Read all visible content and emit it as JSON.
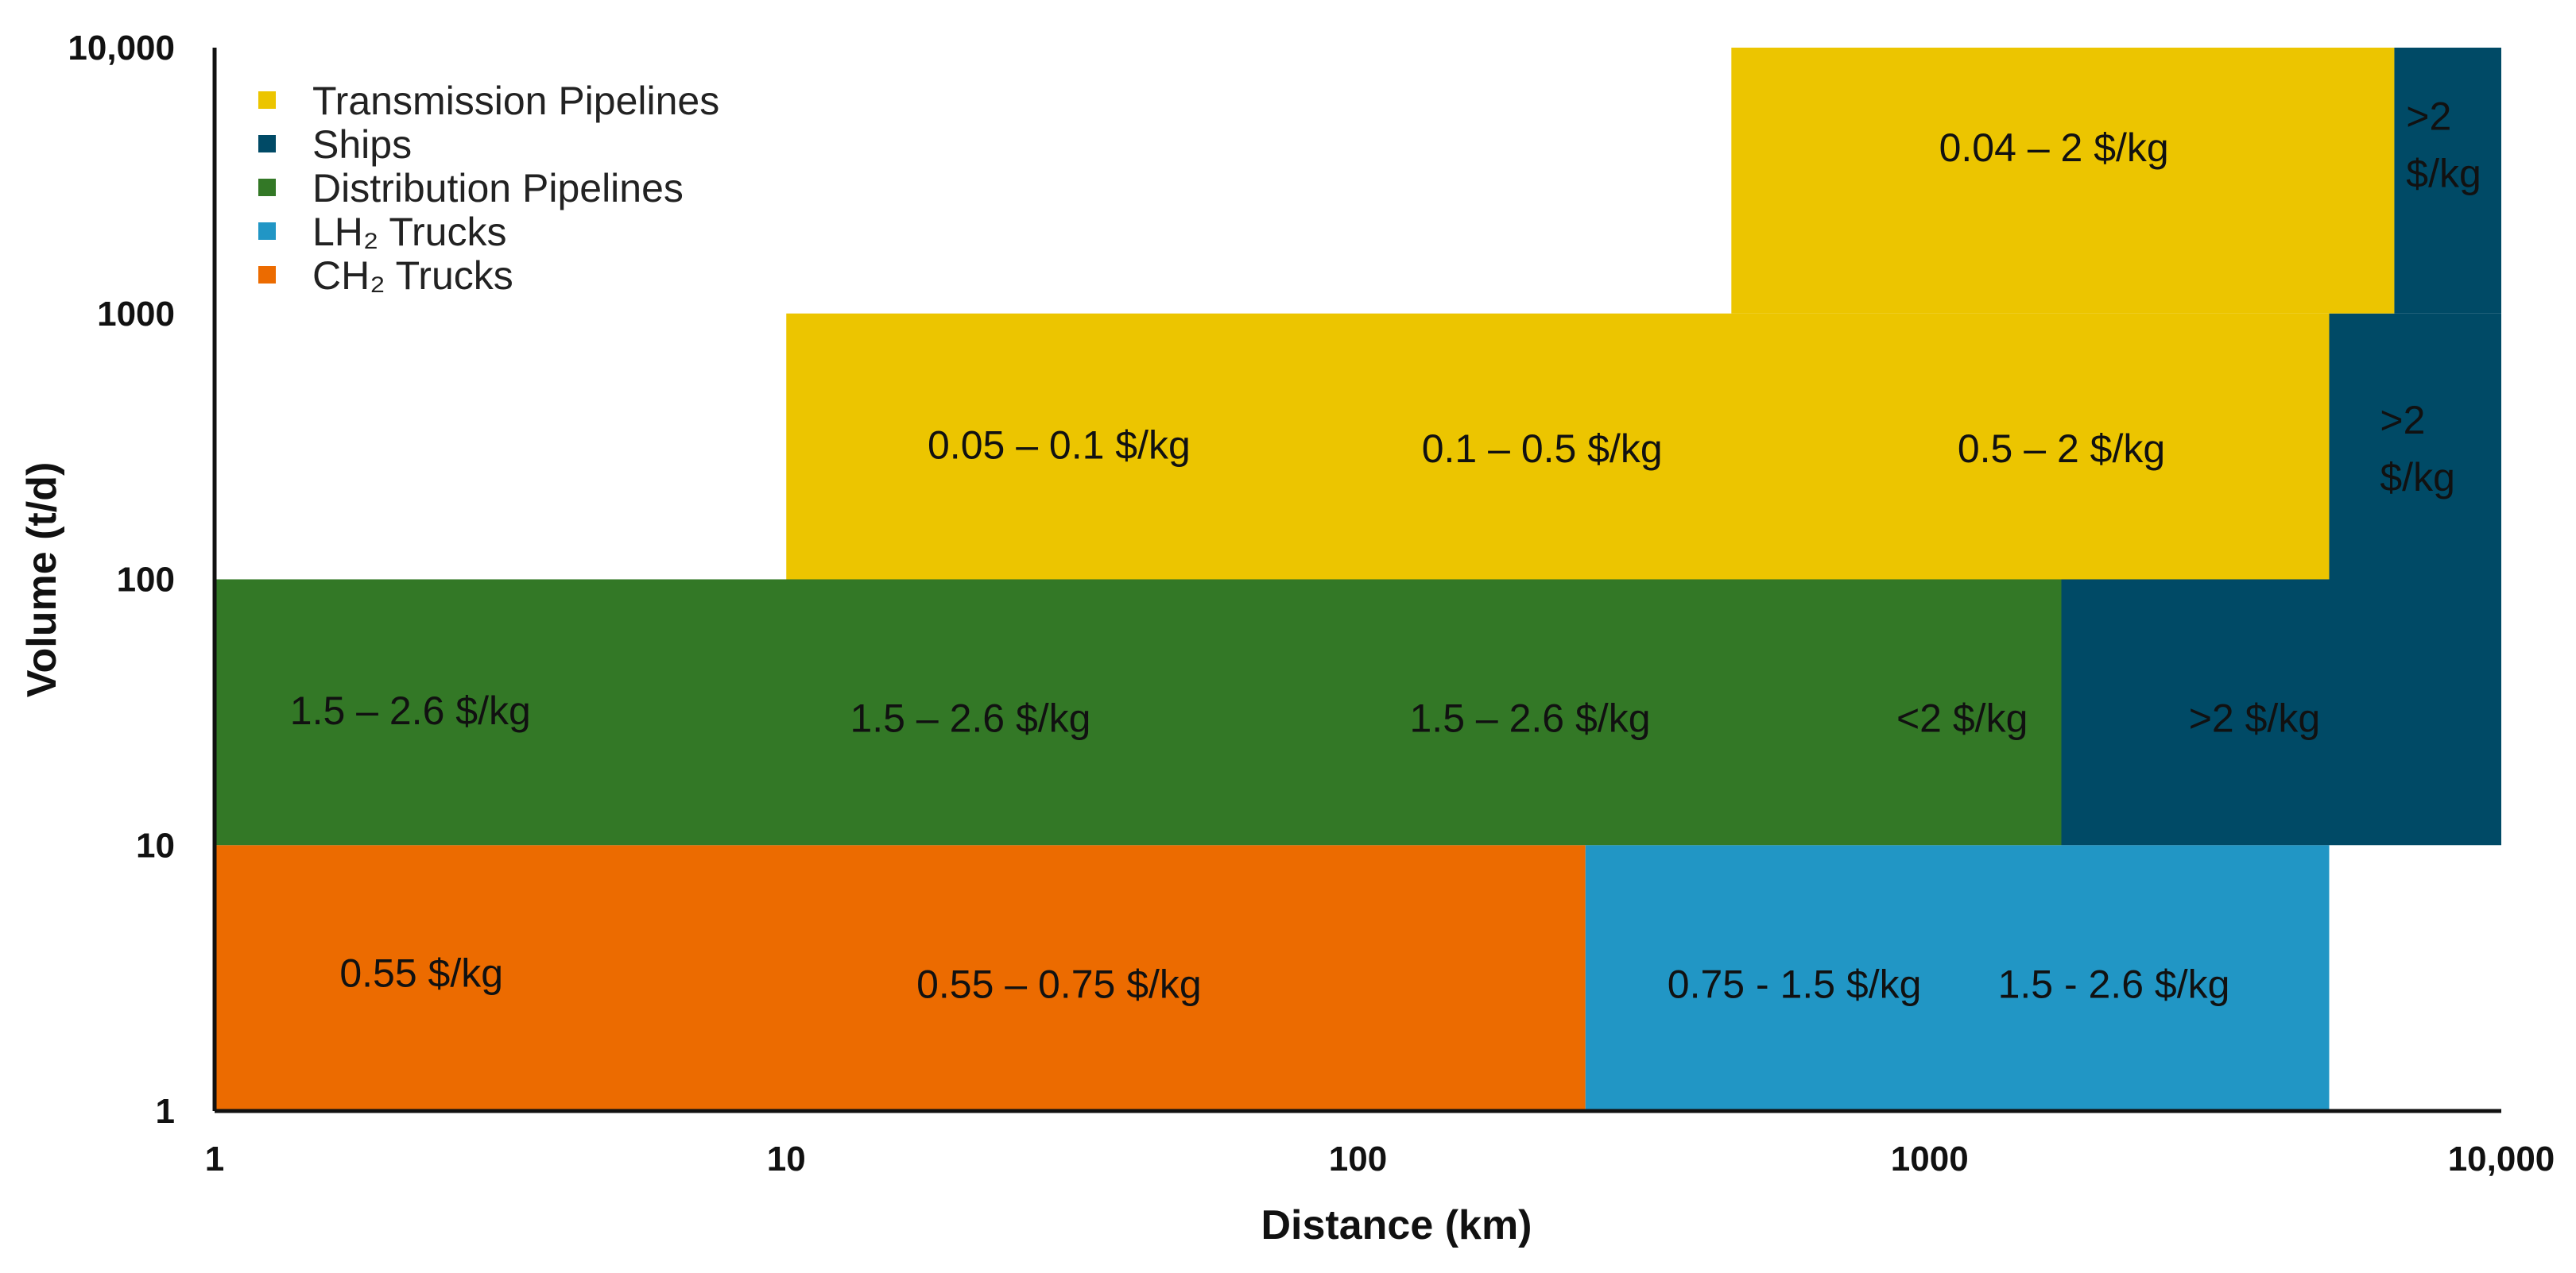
{
  "chart_data": {
    "type": "heatmap",
    "xlabel": "Distance (km)",
    "ylabel": "Volume (t/d)",
    "x_scale": "log",
    "y_scale": "log",
    "xlim": [
      1,
      10000
    ],
    "ylim": [
      1,
      10000
    ],
    "x_ticks": [
      {
        "value": 1,
        "label": "1"
      },
      {
        "value": 10,
        "label": "10"
      },
      {
        "value": 100,
        "label": "100"
      },
      {
        "value": 1000,
        "label": "1000"
      },
      {
        "value": 10000,
        "label": "10,000"
      }
    ],
    "y_ticks": [
      {
        "value": 1,
        "label": "1"
      },
      {
        "value": 10,
        "label": "10"
      },
      {
        "value": 100,
        "label": "100"
      },
      {
        "value": 1000,
        "label": "1000"
      },
      {
        "value": 10000,
        "label": "10,000"
      }
    ],
    "legend_position": "top-left",
    "legend": [
      {
        "name": "Transmission Pipelines",
        "series": "transmission",
        "color": "#ecc500"
      },
      {
        "name": "Ships",
        "series": "ships",
        "color": "#004a66"
      },
      {
        "name": "Distribution Pipelines",
        "series": "distribution",
        "color": "#337826"
      },
      {
        "name": "LH₂ Trucks",
        "series": "lh2",
        "color": "#2196c5"
      },
      {
        "name": "CH₂ Trucks",
        "series": "ch2",
        "color": "#ec6b00"
      }
    ],
    "regions": [
      {
        "series": "ch2",
        "x": [
          1,
          250
        ],
        "y": [
          1,
          10
        ]
      },
      {
        "series": "lh2",
        "x": [
          250,
          5000
        ],
        "y": [
          1,
          10
        ]
      },
      {
        "series": "distribution",
        "x": [
          1,
          1700
        ],
        "y": [
          10,
          100
        ]
      },
      {
        "series": "ships",
        "x": [
          1700,
          10000
        ],
        "y": [
          10,
          100
        ]
      },
      {
        "series": "transmission",
        "x": [
          10,
          5000
        ],
        "y": [
          100,
          1000
        ]
      },
      {
        "series": "ships",
        "x": [
          5000,
          10000
        ],
        "y": [
          100,
          1000
        ]
      },
      {
        "series": "transmission",
        "x": [
          450,
          6500
        ],
        "y": [
          1000,
          10000
        ]
      },
      {
        "series": "ships",
        "x": [
          6500,
          10000
        ],
        "y": [
          1000,
          10000
        ]
      }
    ],
    "annotations": [
      {
        "text": "0.55 $/kg",
        "x": 2.3,
        "y": 3.3
      },
      {
        "text": "0.55 – 0.75 $/kg",
        "x": 30,
        "y": 3.0
      },
      {
        "text": "0.75 - 1.5 $/kg",
        "x": 580,
        "y": 3.0
      },
      {
        "text": "1.5 - 2.6 $/kg",
        "x": 2100,
        "y": 3.0
      },
      {
        "text": "1.5 – 2.6 $/kg",
        "x": 2.2,
        "y": 32
      },
      {
        "text": "1.5 – 2.6 $/kg",
        "x": 21,
        "y": 30
      },
      {
        "text": "1.5 – 2.6 $/kg",
        "x": 200,
        "y": 30
      },
      {
        "text": "<2 $/kg",
        "x": 1140,
        "y": 30
      },
      {
        "text": ">2 $/kg",
        "x": 3700,
        "y": 30
      },
      {
        "text": "0.05 – 0.1 $/kg",
        "x": 30,
        "y": 320
      },
      {
        "text": "0.1 – 0.5 $/kg",
        "x": 210,
        "y": 310
      },
      {
        "text": "0.5 – 2 $/kg",
        "x": 1700,
        "y": 310
      },
      {
        "text": "0.04 – 2 $/kg",
        "x": 1650,
        "y": 4200
      },
      {
        "lines": [
          ">2",
          "$/kg"
        ],
        "x": 7200,
        "y": 310
      },
      {
        "lines": [
          ">2",
          "$/kg"
        ],
        "x": 8000,
        "y": 4300
      }
    ]
  }
}
